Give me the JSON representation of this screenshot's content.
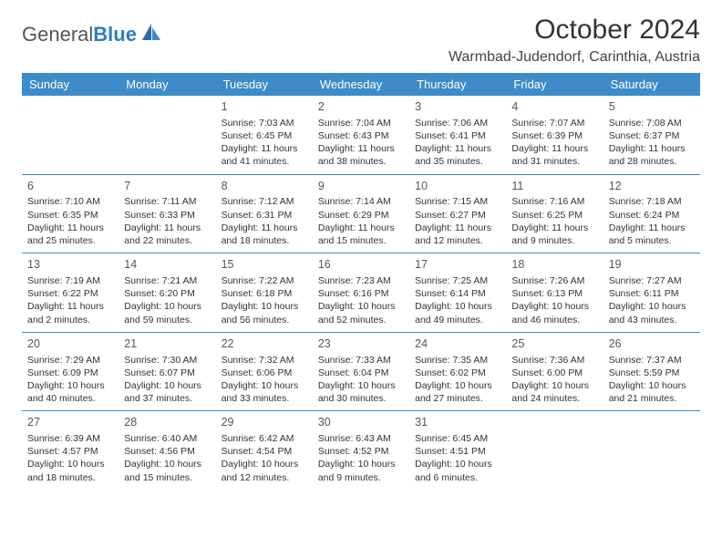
{
  "logo": {
    "text_general": "General",
    "text_blue": "Blue"
  },
  "header": {
    "month_title": "October 2024",
    "location": "Warmbad-Judendorf, Carinthia, Austria"
  },
  "colors": {
    "header_bg": "#3d8bc8",
    "header_text": "#ffffff",
    "divider": "#3d8bc8",
    "body_text": "#333333",
    "logo_gray": "#555555",
    "logo_blue": "#2d7dc4",
    "page_bg": "#ffffff"
  },
  "columns": [
    "Sunday",
    "Monday",
    "Tuesday",
    "Wednesday",
    "Thursday",
    "Friday",
    "Saturday"
  ],
  "weeks": [
    [
      null,
      null,
      {
        "day": "1",
        "sunrise": "Sunrise: 7:03 AM",
        "sunset": "Sunset: 6:45 PM",
        "daylight": "Daylight: 11 hours and 41 minutes."
      },
      {
        "day": "2",
        "sunrise": "Sunrise: 7:04 AM",
        "sunset": "Sunset: 6:43 PM",
        "daylight": "Daylight: 11 hours and 38 minutes."
      },
      {
        "day": "3",
        "sunrise": "Sunrise: 7:06 AM",
        "sunset": "Sunset: 6:41 PM",
        "daylight": "Daylight: 11 hours and 35 minutes."
      },
      {
        "day": "4",
        "sunrise": "Sunrise: 7:07 AM",
        "sunset": "Sunset: 6:39 PM",
        "daylight": "Daylight: 11 hours and 31 minutes."
      },
      {
        "day": "5",
        "sunrise": "Sunrise: 7:08 AM",
        "sunset": "Sunset: 6:37 PM",
        "daylight": "Daylight: 11 hours and 28 minutes."
      }
    ],
    [
      {
        "day": "6",
        "sunrise": "Sunrise: 7:10 AM",
        "sunset": "Sunset: 6:35 PM",
        "daylight": "Daylight: 11 hours and 25 minutes."
      },
      {
        "day": "7",
        "sunrise": "Sunrise: 7:11 AM",
        "sunset": "Sunset: 6:33 PM",
        "daylight": "Daylight: 11 hours and 22 minutes."
      },
      {
        "day": "8",
        "sunrise": "Sunrise: 7:12 AM",
        "sunset": "Sunset: 6:31 PM",
        "daylight": "Daylight: 11 hours and 18 minutes."
      },
      {
        "day": "9",
        "sunrise": "Sunrise: 7:14 AM",
        "sunset": "Sunset: 6:29 PM",
        "daylight": "Daylight: 11 hours and 15 minutes."
      },
      {
        "day": "10",
        "sunrise": "Sunrise: 7:15 AM",
        "sunset": "Sunset: 6:27 PM",
        "daylight": "Daylight: 11 hours and 12 minutes."
      },
      {
        "day": "11",
        "sunrise": "Sunrise: 7:16 AM",
        "sunset": "Sunset: 6:25 PM",
        "daylight": "Daylight: 11 hours and 9 minutes."
      },
      {
        "day": "12",
        "sunrise": "Sunrise: 7:18 AM",
        "sunset": "Sunset: 6:24 PM",
        "daylight": "Daylight: 11 hours and 5 minutes."
      }
    ],
    [
      {
        "day": "13",
        "sunrise": "Sunrise: 7:19 AM",
        "sunset": "Sunset: 6:22 PM",
        "daylight": "Daylight: 11 hours and 2 minutes."
      },
      {
        "day": "14",
        "sunrise": "Sunrise: 7:21 AM",
        "sunset": "Sunset: 6:20 PM",
        "daylight": "Daylight: 10 hours and 59 minutes."
      },
      {
        "day": "15",
        "sunrise": "Sunrise: 7:22 AM",
        "sunset": "Sunset: 6:18 PM",
        "daylight": "Daylight: 10 hours and 56 minutes."
      },
      {
        "day": "16",
        "sunrise": "Sunrise: 7:23 AM",
        "sunset": "Sunset: 6:16 PM",
        "daylight": "Daylight: 10 hours and 52 minutes."
      },
      {
        "day": "17",
        "sunrise": "Sunrise: 7:25 AM",
        "sunset": "Sunset: 6:14 PM",
        "daylight": "Daylight: 10 hours and 49 minutes."
      },
      {
        "day": "18",
        "sunrise": "Sunrise: 7:26 AM",
        "sunset": "Sunset: 6:13 PM",
        "daylight": "Daylight: 10 hours and 46 minutes."
      },
      {
        "day": "19",
        "sunrise": "Sunrise: 7:27 AM",
        "sunset": "Sunset: 6:11 PM",
        "daylight": "Daylight: 10 hours and 43 minutes."
      }
    ],
    [
      {
        "day": "20",
        "sunrise": "Sunrise: 7:29 AM",
        "sunset": "Sunset: 6:09 PM",
        "daylight": "Daylight: 10 hours and 40 minutes."
      },
      {
        "day": "21",
        "sunrise": "Sunrise: 7:30 AM",
        "sunset": "Sunset: 6:07 PM",
        "daylight": "Daylight: 10 hours and 37 minutes."
      },
      {
        "day": "22",
        "sunrise": "Sunrise: 7:32 AM",
        "sunset": "Sunset: 6:06 PM",
        "daylight": "Daylight: 10 hours and 33 minutes."
      },
      {
        "day": "23",
        "sunrise": "Sunrise: 7:33 AM",
        "sunset": "Sunset: 6:04 PM",
        "daylight": "Daylight: 10 hours and 30 minutes."
      },
      {
        "day": "24",
        "sunrise": "Sunrise: 7:35 AM",
        "sunset": "Sunset: 6:02 PM",
        "daylight": "Daylight: 10 hours and 27 minutes."
      },
      {
        "day": "25",
        "sunrise": "Sunrise: 7:36 AM",
        "sunset": "Sunset: 6:00 PM",
        "daylight": "Daylight: 10 hours and 24 minutes."
      },
      {
        "day": "26",
        "sunrise": "Sunrise: 7:37 AM",
        "sunset": "Sunset: 5:59 PM",
        "daylight": "Daylight: 10 hours and 21 minutes."
      }
    ],
    [
      {
        "day": "27",
        "sunrise": "Sunrise: 6:39 AM",
        "sunset": "Sunset: 4:57 PM",
        "daylight": "Daylight: 10 hours and 18 minutes."
      },
      {
        "day": "28",
        "sunrise": "Sunrise: 6:40 AM",
        "sunset": "Sunset: 4:56 PM",
        "daylight": "Daylight: 10 hours and 15 minutes."
      },
      {
        "day": "29",
        "sunrise": "Sunrise: 6:42 AM",
        "sunset": "Sunset: 4:54 PM",
        "daylight": "Daylight: 10 hours and 12 minutes."
      },
      {
        "day": "30",
        "sunrise": "Sunrise: 6:43 AM",
        "sunset": "Sunset: 4:52 PM",
        "daylight": "Daylight: 10 hours and 9 minutes."
      },
      {
        "day": "31",
        "sunrise": "Sunrise: 6:45 AM",
        "sunset": "Sunset: 4:51 PM",
        "daylight": "Daylight: 10 hours and 6 minutes."
      },
      null,
      null
    ]
  ]
}
